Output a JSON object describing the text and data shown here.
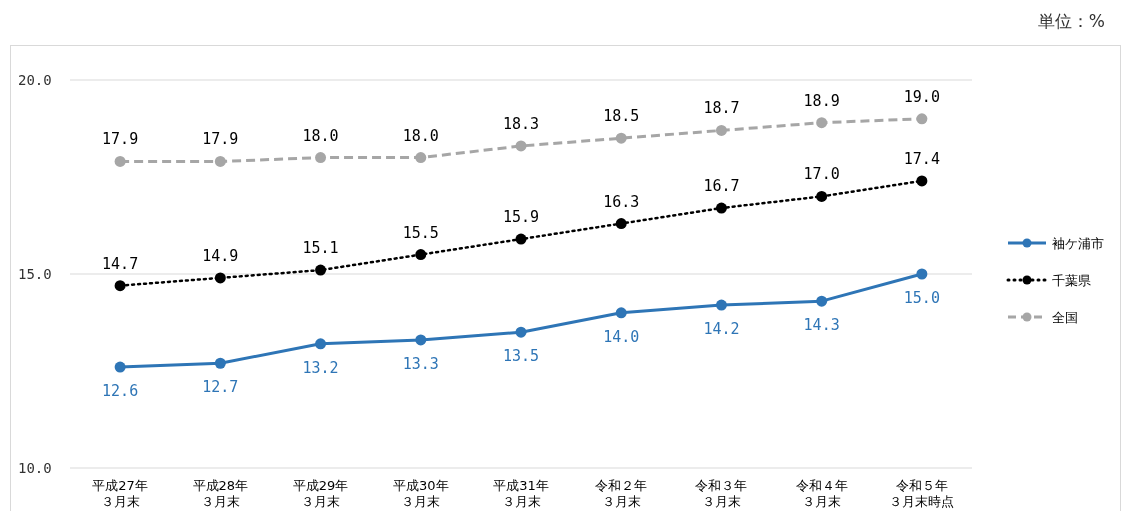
{
  "chart_data": {
    "type": "line",
    "annotations": [
      "単位：%"
    ],
    "categories": [
      "平成27年３月末",
      "平成28年３月末",
      "平成29年３月末",
      "平成30年３月末",
      "平成31年３月末",
      "令和２年３月末",
      "令和３年３月末",
      "令和４年３月末",
      "令和５年３月末時点"
    ],
    "ylim": [
      10,
      20
    ],
    "yticks": [
      {
        "value": 10,
        "label": "10.0"
      },
      {
        "value": 15,
        "label": "15.0"
      },
      {
        "value": 20,
        "label": "20.0"
      }
    ],
    "grid": "y",
    "legend": "right",
    "marker": "circle",
    "data_labels": true,
    "series": [
      {
        "name": "袖ケ浦市",
        "color": "#2e75b6",
        "line_style": "solid",
        "values": [
          12.6,
          12.7,
          13.2,
          13.3,
          13.5,
          14.0,
          14.2,
          14.3,
          15.0
        ],
        "value_labels": [
          "12.6",
          "12.7",
          "13.2",
          "13.3",
          "13.5",
          "14.0",
          "14.2",
          "14.3",
          "15.0"
        ]
      },
      {
        "name": "千葉県",
        "color": "#000000",
        "line_style": "dotted",
        "values": [
          14.7,
          14.9,
          15.1,
          15.5,
          15.9,
          16.3,
          16.7,
          17.0,
          17.4
        ],
        "value_labels": [
          "14.7",
          "14.9",
          "15.1",
          "15.5",
          "15.9",
          "16.3",
          "16.7",
          "17.0",
          "17.4"
        ]
      },
      {
        "name": "全国",
        "color": "#a6a6a6",
        "line_style": "dashed",
        "values": [
          17.9,
          17.9,
          18.0,
          18.0,
          18.3,
          18.5,
          18.7,
          18.9,
          19.0
        ],
        "value_labels": [
          "17.9",
          "17.9",
          "18.0",
          "18.0",
          "18.3",
          "18.5",
          "18.7",
          "18.9",
          "19.0"
        ]
      }
    ]
  }
}
